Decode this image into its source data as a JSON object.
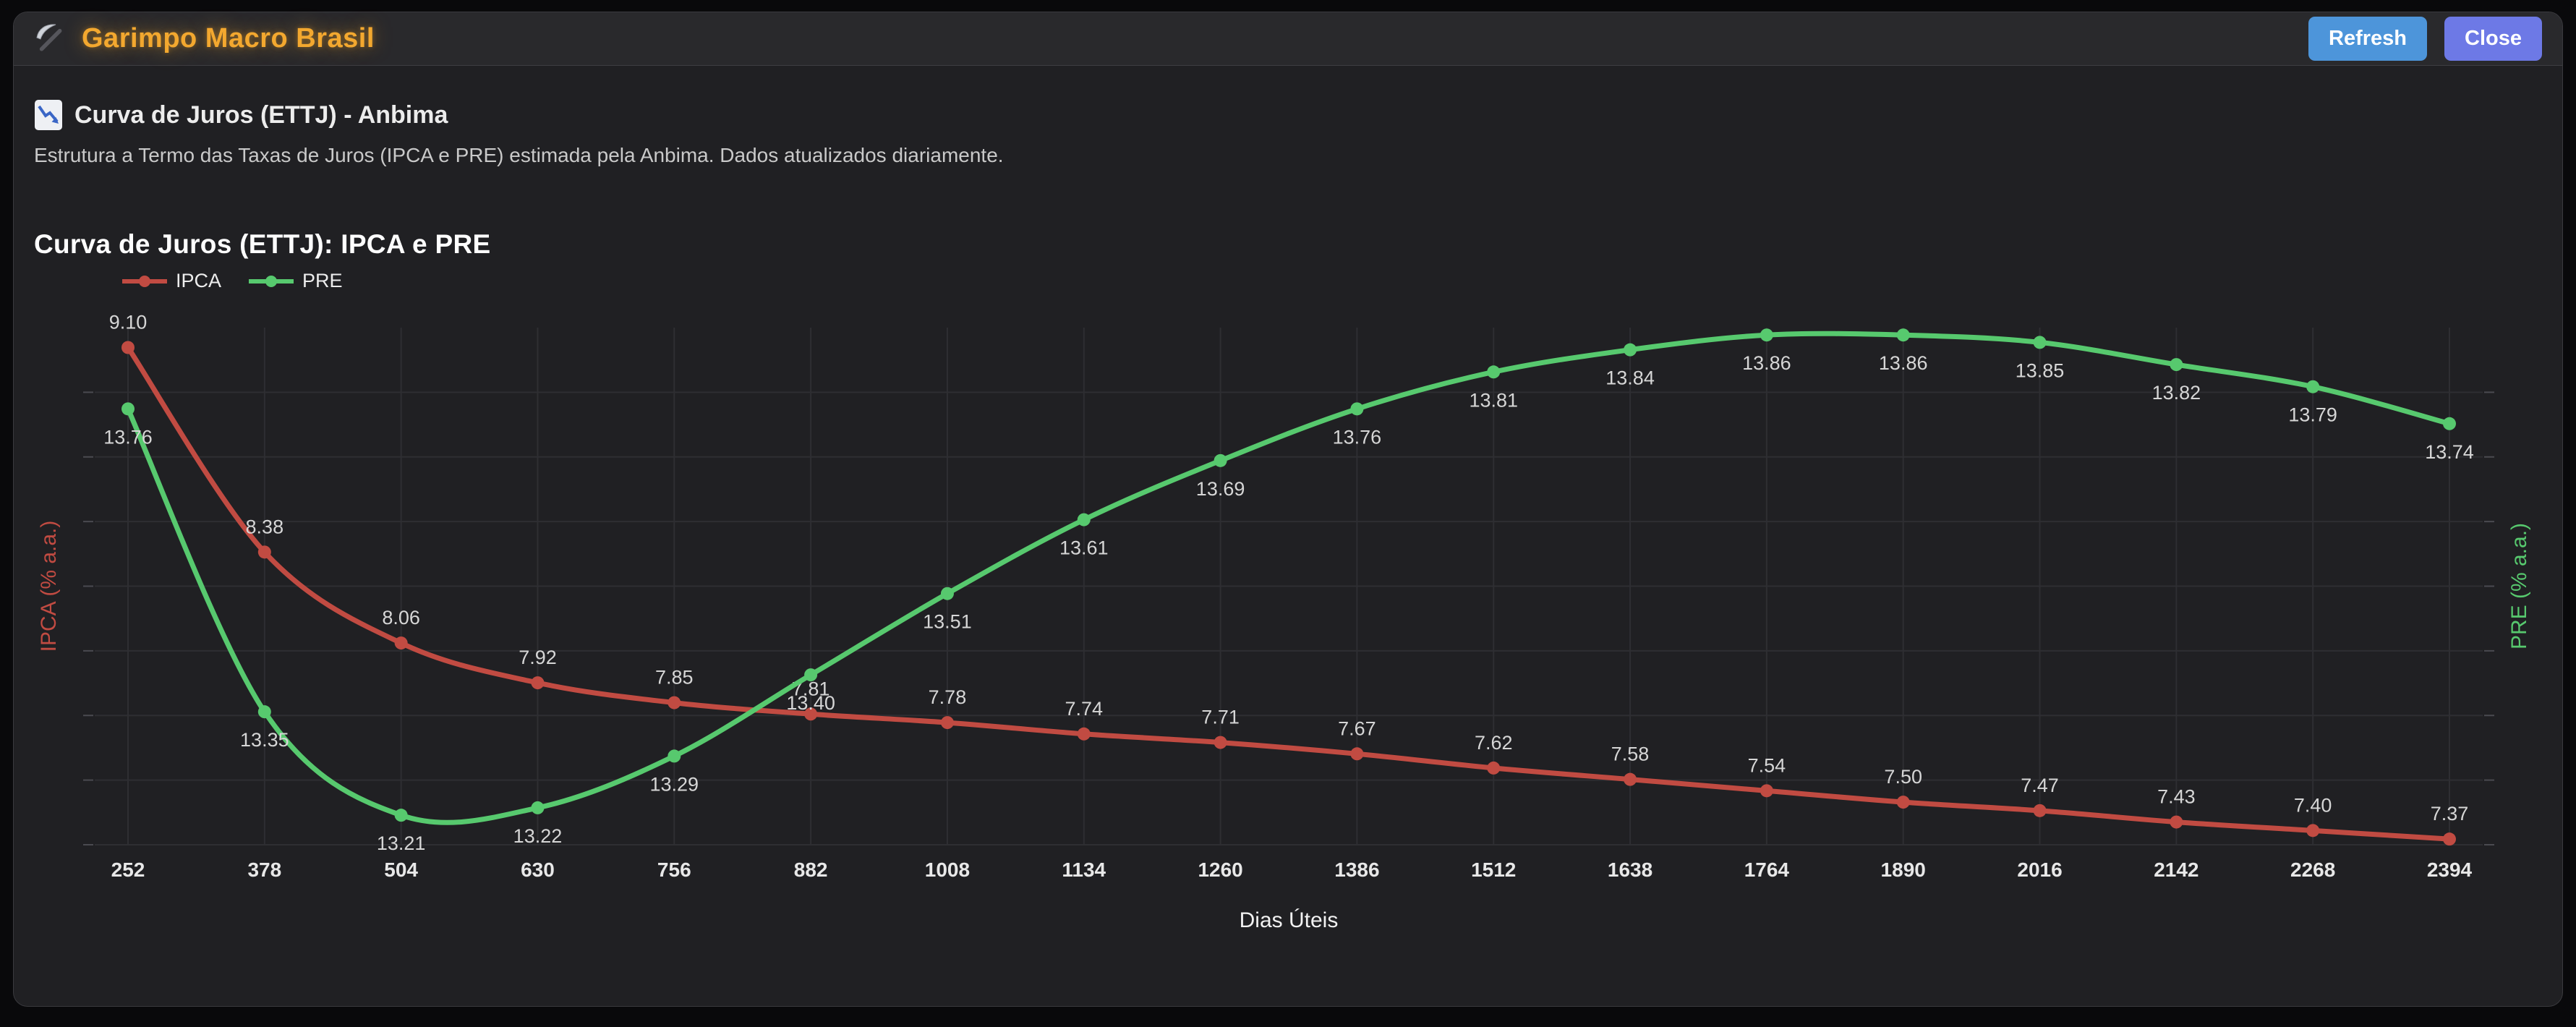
{
  "header": {
    "title": "Garimpo Macro Brasil",
    "refresh_label": "Refresh",
    "close_label": "Close"
  },
  "section": {
    "title": "Curva de Juros (ETTJ) - Anbima",
    "description": "Estrutura a Termo das Taxas de Juros (IPCA e PRE) estimada pela Anbima. Dados atualizados diariamente."
  },
  "chart_data": {
    "type": "line",
    "title": "Curva de Juros (ETTJ): IPCA e PRE",
    "xlabel": "Dias Úteis",
    "grid": true,
    "legend_position": "top-left",
    "x": [
      252,
      378,
      504,
      630,
      756,
      882,
      1008,
      1134,
      1260,
      1386,
      1512,
      1638,
      1764,
      1890,
      2016,
      2142,
      2268,
      2394
    ],
    "series": [
      {
        "name": "IPCA",
        "color": "#c14b42",
        "axis": "left",
        "axis_label": "IPCA (% a.a.)",
        "ylim": [
          7.35,
          9.17
        ],
        "values": [
          9.1,
          8.38,
          8.06,
          7.92,
          7.85,
          7.81,
          7.78,
          7.74,
          7.71,
          7.67,
          7.62,
          7.58,
          7.54,
          7.5,
          7.47,
          7.43,
          7.4,
          7.37
        ]
      },
      {
        "name": "PRE",
        "color": "#57c96e",
        "axis": "right",
        "axis_label": "PRE (% a.a.)",
        "ylim": [
          13.17,
          13.87
        ],
        "values": [
          13.76,
          13.35,
          13.21,
          13.22,
          13.29,
          13.4,
          13.51,
          13.61,
          13.69,
          13.76,
          13.81,
          13.84,
          13.86,
          13.86,
          13.85,
          13.82,
          13.79,
          13.74
        ]
      }
    ],
    "colors": {
      "grid": "#2e2e32",
      "tick": "#4a4a50",
      "label": "#d6d6d6",
      "x_tick_label": "#e8e8e8",
      "axis_title_bottom": "#f2f2f2"
    }
  }
}
